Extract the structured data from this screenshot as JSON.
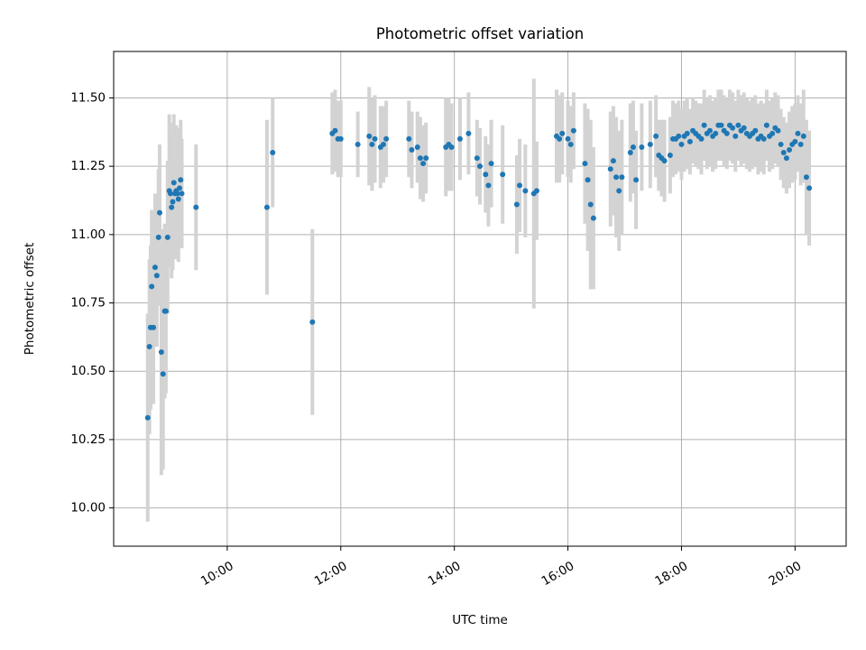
{
  "chart_data": {
    "type": "scatter",
    "title": "Photometric offset variation",
    "xlabel": "UTC time",
    "ylabel": "Photometric offset",
    "x_unit": "hours UTC",
    "xlim": [
      8.0,
      20.9
    ],
    "ylim": [
      9.86,
      11.67
    ],
    "x_ticks": [
      10,
      12,
      14,
      16,
      18,
      20
    ],
    "x_tick_labels": [
      "10:00",
      "12:00",
      "14:00",
      "16:00",
      "18:00",
      "20:00"
    ],
    "y_ticks": [
      10.0,
      10.25,
      10.5,
      10.75,
      11.0,
      11.25,
      11.5
    ],
    "y_tick_labels": [
      "10.00",
      "10.25",
      "10.50",
      "10.75",
      "11.00",
      "11.25",
      "11.50"
    ],
    "grid": true,
    "colors": {
      "points": "#1f77b4",
      "error_bars": "#d3d3d3"
    },
    "series": [
      {
        "x": [
          8.6,
          8.63,
          8.65,
          8.67,
          8.7,
          8.73,
          8.76,
          8.79,
          8.81,
          8.84,
          8.87,
          8.9,
          8.92,
          8.95,
          8.98,
          9.0,
          9.02,
          9.04,
          9.06,
          9.08,
          9.1,
          9.12,
          9.14,
          9.16,
          9.18,
          9.2,
          9.45,
          10.7,
          10.8,
          11.5,
          11.85,
          11.9,
          11.95,
          12.0,
          12.3,
          12.5,
          12.55,
          12.6,
          12.7,
          12.75,
          12.8,
          13.2,
          13.25,
          13.35,
          13.4,
          13.45,
          13.5,
          13.85,
          13.9,
          13.95,
          14.1,
          14.25,
          14.4,
          14.45,
          14.55,
          14.6,
          14.65,
          14.85,
          15.1,
          15.15,
          15.25,
          15.4,
          15.45,
          15.8,
          15.85,
          15.9,
          16.0,
          16.05,
          16.1,
          16.3,
          16.35,
          16.4,
          16.45,
          16.75,
          16.8,
          16.85,
          16.9,
          16.95,
          17.1,
          17.15,
          17.2,
          17.3,
          17.45,
          17.55,
          17.6,
          17.65,
          17.7,
          17.8,
          17.85,
          17.9,
          17.95,
          18.0,
          18.05,
          18.1,
          18.15,
          18.2,
          18.25,
          18.3,
          18.35,
          18.4,
          18.45,
          18.5,
          18.55,
          18.6,
          18.65,
          18.7,
          18.75,
          18.8,
          18.85,
          18.9,
          18.95,
          19.0,
          19.05,
          19.1,
          19.15,
          19.2,
          19.25,
          19.3,
          19.35,
          19.4,
          19.45,
          19.5,
          19.55,
          19.6,
          19.65,
          19.7,
          19.75,
          19.8,
          19.85,
          19.9,
          19.95,
          20.0,
          20.05,
          20.1,
          20.15,
          20.2,
          20.25
        ],
        "y": [
          10.33,
          10.59,
          10.66,
          10.81,
          10.66,
          10.88,
          10.85,
          10.99,
          11.08,
          10.57,
          10.49,
          10.72,
          10.72,
          10.99,
          11.16,
          11.15,
          11.1,
          11.12,
          11.19,
          11.15,
          11.16,
          11.15,
          11.13,
          11.17,
          11.2,
          11.15,
          11.1,
          11.1,
          11.3,
          10.68,
          11.37,
          11.38,
          11.35,
          11.35,
          11.33,
          11.36,
          11.33,
          11.35,
          11.32,
          11.33,
          11.35,
          11.35,
          11.31,
          11.32,
          11.28,
          11.26,
          11.28,
          11.32,
          11.33,
          11.32,
          11.35,
          11.37,
          11.28,
          11.25,
          11.22,
          11.18,
          11.26,
          11.22,
          11.11,
          11.18,
          11.16,
          11.15,
          11.16,
          11.36,
          11.35,
          11.37,
          11.35,
          11.33,
          11.38,
          11.26,
          11.2,
          11.11,
          11.06,
          11.24,
          11.27,
          11.21,
          11.16,
          11.21,
          11.3,
          11.32,
          11.2,
          11.32,
          11.33,
          11.36,
          11.29,
          11.28,
          11.27,
          11.29,
          11.35,
          11.35,
          11.36,
          11.33,
          11.36,
          11.37,
          11.34,
          11.38,
          11.37,
          11.36,
          11.35,
          11.4,
          11.37,
          11.38,
          11.36,
          11.37,
          11.4,
          11.4,
          11.38,
          11.37,
          11.4,
          11.39,
          11.36,
          11.4,
          11.38,
          11.39,
          11.37,
          11.36,
          11.37,
          11.38,
          11.35,
          11.36,
          11.35,
          11.4,
          11.36,
          11.37,
          11.39,
          11.38,
          11.33,
          11.3,
          11.28,
          11.31,
          11.33,
          11.34,
          11.37,
          11.33,
          11.36,
          11.21,
          11.17
        ],
        "yerr": [
          0.38,
          0.32,
          0.3,
          0.28,
          0.28,
          0.27,
          0.26,
          0.25,
          0.25,
          0.45,
          0.35,
          0.32,
          0.3,
          0.28,
          0.28,
          0.26,
          0.26,
          0.25,
          0.25,
          0.24,
          0.24,
          0.23,
          0.23,
          0.22,
          0.22,
          0.2,
          0.23,
          0.32,
          0.2,
          0.34,
          0.15,
          0.15,
          0.14,
          0.14,
          0.12,
          0.18,
          0.17,
          0.16,
          0.15,
          0.14,
          0.14,
          0.14,
          0.14,
          0.13,
          0.15,
          0.14,
          0.13,
          0.18,
          0.17,
          0.16,
          0.15,
          0.15,
          0.14,
          0.14,
          0.14,
          0.15,
          0.16,
          0.18,
          0.18,
          0.17,
          0.17,
          0.42,
          0.18,
          0.17,
          0.16,
          0.15,
          0.14,
          0.14,
          0.14,
          0.22,
          0.26,
          0.31,
          0.26,
          0.21,
          0.2,
          0.22,
          0.22,
          0.21,
          0.18,
          0.17,
          0.18,
          0.16,
          0.16,
          0.15,
          0.13,
          0.14,
          0.15,
          0.14,
          0.14,
          0.13,
          0.13,
          0.13,
          0.13,
          0.13,
          0.12,
          0.12,
          0.12,
          0.12,
          0.13,
          0.13,
          0.13,
          0.13,
          0.13,
          0.13,
          0.13,
          0.13,
          0.13,
          0.13,
          0.13,
          0.13,
          0.13,
          0.13,
          0.13,
          0.13,
          0.13,
          0.13,
          0.13,
          0.13,
          0.13,
          0.13,
          0.13,
          0.13,
          0.13,
          0.13,
          0.13,
          0.13,
          0.13,
          0.13,
          0.13,
          0.14,
          0.14,
          0.14,
          0.14,
          0.15,
          0.17,
          0.21,
          0.21
        ]
      }
    ]
  }
}
